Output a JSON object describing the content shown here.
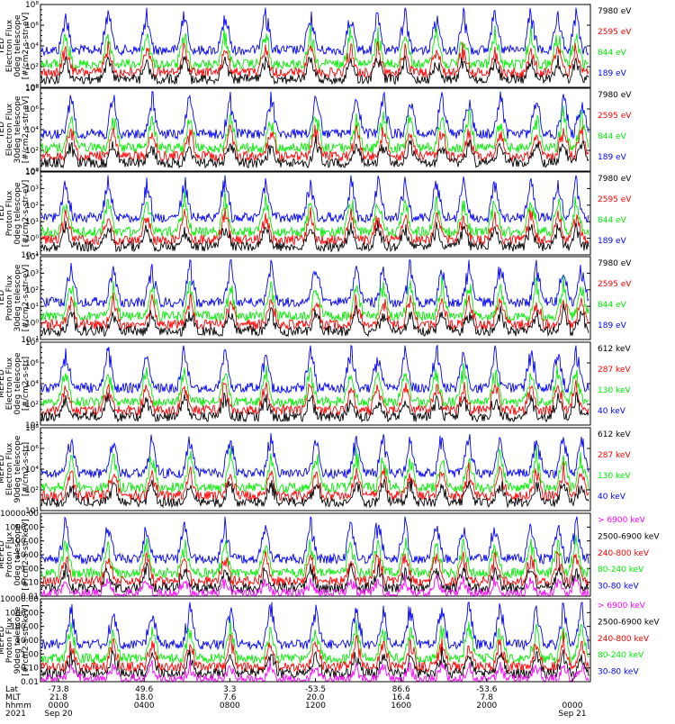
{
  "chart_data": [
    {
      "type": "line",
      "ylabel": [
        "TED",
        "Electron Flux",
        "0deg telescope",
        "[#/cm2-s-str-eV]"
      ],
      "yscale": "log",
      "yticks": [
        "10⁰",
        "10²",
        "10⁴",
        "10⁶",
        "10⁸"
      ],
      "legend": [
        {
          "text": "7980 eV",
          "color": "#000000"
        },
        {
          "text": "2595 eV",
          "color": "#ff0000"
        },
        {
          "text": "844 eV",
          "color": "#00ee00"
        },
        {
          "text": "189 eV",
          "color": "#0000ff"
        }
      ]
    },
    {
      "type": "line",
      "ylabel": [
        "TED",
        "Electron Flux",
        "30deg telescope",
        "[#/cm2-s-str-eV]"
      ],
      "yscale": "log",
      "yticks": [
        "10⁰",
        "10²",
        "10⁴",
        "10⁶",
        "10⁸"
      ],
      "legend": [
        {
          "text": "7980 eV",
          "color": "#000000"
        },
        {
          "text": "2595 eV",
          "color": "#ff0000"
        },
        {
          "text": "844 eV",
          "color": "#00ee00"
        },
        {
          "text": "189 eV",
          "color": "#0000ff"
        }
      ]
    },
    {
      "type": "line",
      "ylabel": [
        "TED",
        "Proton Flux",
        "0deg telescope",
        "[#/cm2-s-str-eV]"
      ],
      "yscale": "log",
      "yticks": [
        "10⁻¹",
        "10⁰",
        "10¹",
        "10²",
        "10³",
        "10⁴"
      ],
      "legend": [
        {
          "text": "7980 eV",
          "color": "#000000"
        },
        {
          "text": "2595 eV",
          "color": "#ff0000"
        },
        {
          "text": "844 eV",
          "color": "#00ee00"
        },
        {
          "text": "189 eV",
          "color": "#0000ff"
        }
      ]
    },
    {
      "type": "line",
      "ylabel": [
        "TED",
        "Proton Flux",
        "30deg telescope",
        "[#/cm2-s-str-eV]"
      ],
      "yscale": "log",
      "yticks": [
        "10⁻¹",
        "10⁰",
        "10¹",
        "10²",
        "10³",
        "10⁴"
      ],
      "legend": [
        {
          "text": "7980 eV",
          "color": "#000000"
        },
        {
          "text": "2595 eV",
          "color": "#ff0000"
        },
        {
          "text": "844 eV",
          "color": "#00ee00"
        },
        {
          "text": "189 eV",
          "color": "#0000ff"
        }
      ]
    },
    {
      "type": "line",
      "ylabel": [
        "MEPED",
        "Electron Flux",
        "0deg telescope",
        "[#/cm2-s-str]"
      ],
      "yscale": "log",
      "yticks": [
        "10¹",
        "10²",
        "10⁴",
        "10⁶",
        "10⁸"
      ],
      "legend": [
        {
          "text": "612 keV",
          "color": "#000000"
        },
        {
          "text": "287 keV",
          "color": "#ff0000"
        },
        {
          "text": "130 keV",
          "color": "#00ee00"
        },
        {
          "text": "40 keV",
          "color": "#0000ff"
        }
      ]
    },
    {
      "type": "line",
      "ylabel": [
        "MEPED",
        "Electron Flux",
        "90deg telescope",
        "[#/cm2-s-str]"
      ],
      "yscale": "log",
      "yticks": [
        "10¹",
        "10²",
        "10⁴",
        "10⁶",
        "10⁸"
      ],
      "legend": [
        {
          "text": "612 keV",
          "color": "#000000"
        },
        {
          "text": "287 keV",
          "color": "#ff0000"
        },
        {
          "text": "130 keV",
          "color": "#00ee00"
        },
        {
          "text": "40 keV",
          "color": "#0000ff"
        }
      ]
    },
    {
      "type": "line",
      "ylabel": [
        "MEPED",
        "Proton Flux",
        "0deg telescope",
        "[#/cm2-s-str-keV]"
      ],
      "yscale": "log",
      "yticks": [
        "0.01",
        "0.10",
        "1.00",
        "10.00",
        "100.00",
        "1000.00",
        "10000.00"
      ],
      "legend": [
        {
          "text": "> 6900 keV",
          "color": "#ff00ff"
        },
        {
          "text": "2500-6900 keV",
          "color": "#000000"
        },
        {
          "text": "240-800 keV",
          "color": "#ff0000"
        },
        {
          "text": "80-240 keV",
          "color": "#00ee00"
        },
        {
          "text": "30-80 keV",
          "color": "#0000ff"
        }
      ]
    },
    {
      "type": "line",
      "ylabel": [
        "MEPED",
        "Proton Flux",
        "90deg telescope",
        "[#/cm2-s-str-keV]"
      ],
      "yscale": "log",
      "yticks": [
        "0.01",
        "0.10",
        "1.00",
        "10.00",
        "100.00",
        "1000.00",
        "10000.00"
      ],
      "legend": [
        {
          "text": "> 6900 keV",
          "color": "#ff00ff"
        },
        {
          "text": "2500-6900 keV",
          "color": "#000000"
        },
        {
          "text": "240-800 keV",
          "color": "#ff0000"
        },
        {
          "text": "80-240 keV",
          "color": "#00ee00"
        },
        {
          "text": "30-80 keV",
          "color": "#0000ff"
        }
      ]
    }
  ],
  "xaxis": {
    "row_labels": [
      "Lat",
      "MLT",
      "hhmm",
      "2021"
    ],
    "ticks": [
      {
        "lat": "-73.8",
        "mlt": "21.8",
        "hhmm": "0000",
        "date": "Sep 20"
      },
      {
        "lat": "49.6",
        "mlt": "18.0",
        "hhmm": "0400",
        "date": ""
      },
      {
        "lat": "3.3",
        "mlt": "7.6",
        "hhmm": "0800",
        "date": ""
      },
      {
        "lat": "-53.5",
        "mlt": "20.0",
        "hhmm": "1200",
        "date": ""
      },
      {
        "lat": "86.6",
        "mlt": "16.4",
        "hhmm": "1600",
        "date": ""
      },
      {
        "lat": "-53.6",
        "mlt": "7.8",
        "hhmm": "2000",
        "date": ""
      },
      {
        "lat": "",
        "mlt": "",
        "hhmm": "0000",
        "date": "Sep 21"
      }
    ]
  }
}
